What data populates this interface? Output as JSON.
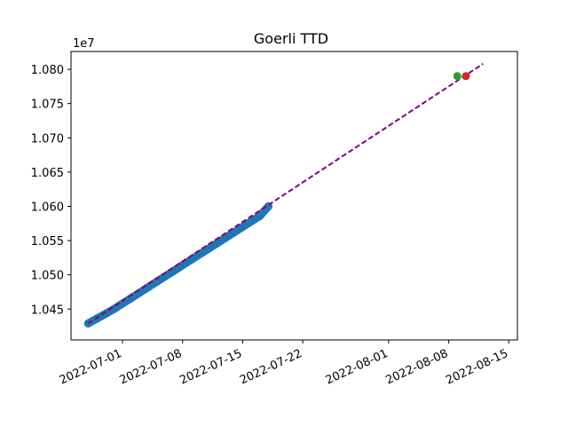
{
  "chart_data": {
    "type": "scatter",
    "title": "Goerli TTD",
    "xlabel": "",
    "ylabel": "",
    "y_scale_label": "1e7",
    "x_tick_labels": [
      "2022-07-01",
      "2022-07-08",
      "2022-07-15",
      "2022-07-22",
      "2022-08-01",
      "2022-08-08",
      "2022-08-15"
    ],
    "x_ticks": [
      "2022-07-01",
      "2022-07-08",
      "2022-07-15",
      "2022-07-22",
      "2022-08-01",
      "2022-08-08",
      "2022-08-15"
    ],
    "y_tick_labels": [
      "1.045",
      "1.050",
      "1.055",
      "1.060",
      "1.065",
      "1.070",
      "1.075",
      "1.080"
    ],
    "y_ticks": [
      1.045,
      1.05,
      1.055,
      1.06,
      1.065,
      1.07,
      1.075,
      1.08
    ],
    "xlim": [
      "2022-06-25",
      "2022-08-16"
    ],
    "ylim": [
      1.0405,
      1.0826
    ],
    "grid": false,
    "series": [
      {
        "kind": "scatter",
        "color": "#1f77b4",
        "x": [
          "2022-06-27",
          "2022-06-28",
          "2022-06-29",
          "2022-06-30",
          "2022-07-01",
          "2022-07-02",
          "2022-07-03",
          "2022-07-04",
          "2022-07-05",
          "2022-07-06",
          "2022-07-07",
          "2022-07-08",
          "2022-07-09",
          "2022-07-10",
          "2022-07-11",
          "2022-07-12",
          "2022-07-13",
          "2022-07-14",
          "2022-07-15",
          "2022-07-16",
          "2022-07-17",
          "2022-07-18"
        ],
        "y": [
          1.0429,
          1.0436,
          1.0443,
          1.045,
          1.0458,
          1.0466,
          1.0474,
          1.0482,
          1.049,
          1.0498,
          1.0506,
          1.0514,
          1.0522,
          1.053,
          1.0538,
          1.0546,
          1.0554,
          1.0562,
          1.057,
          1.0578,
          1.0586,
          1.06
        ]
      },
      {
        "kind": "trend-line",
        "style": "dashed",
        "color": "#800080",
        "x": [
          "2022-06-27",
          "2022-08-12"
        ],
        "y": [
          1.0429,
          1.0808
        ]
      },
      {
        "kind": "point",
        "color": "#d62728",
        "x": [
          "2022-08-10"
        ],
        "y": [
          1.079
        ]
      },
      {
        "kind": "point",
        "color": "#2ca02c",
        "x": [
          "2022-08-09"
        ],
        "y": [
          1.079
        ]
      }
    ]
  }
}
